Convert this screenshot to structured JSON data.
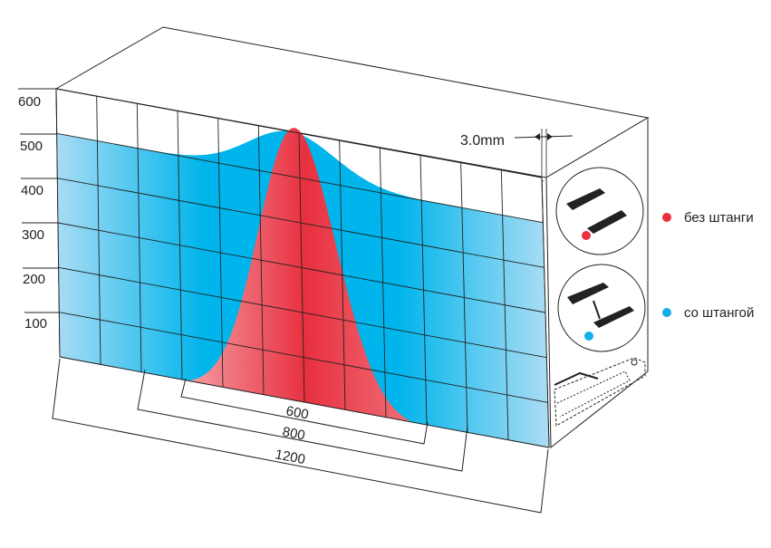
{
  "load_axis": {
    "ticks": [
      "600",
      "500",
      "400",
      "300",
      "200",
      "100"
    ]
  },
  "dimensions": {
    "thickness": "3.0mm",
    "width_600": "600",
    "width_800": "800",
    "width_1200": "1200"
  },
  "legend": {
    "items": [
      {
        "label": "без штанги",
        "color": "#e8303f",
        "icon": "drawer-runners-without-rod-icon"
      },
      {
        "label": "со штангой",
        "color": "#14aee8",
        "icon": "drawer-runners-with-rod-icon"
      }
    ]
  },
  "colors": {
    "blue": "#00b5ec",
    "blue_light": "#a9dcf4",
    "red": "#e8303f",
    "red_light": "#f5a3a8"
  }
}
